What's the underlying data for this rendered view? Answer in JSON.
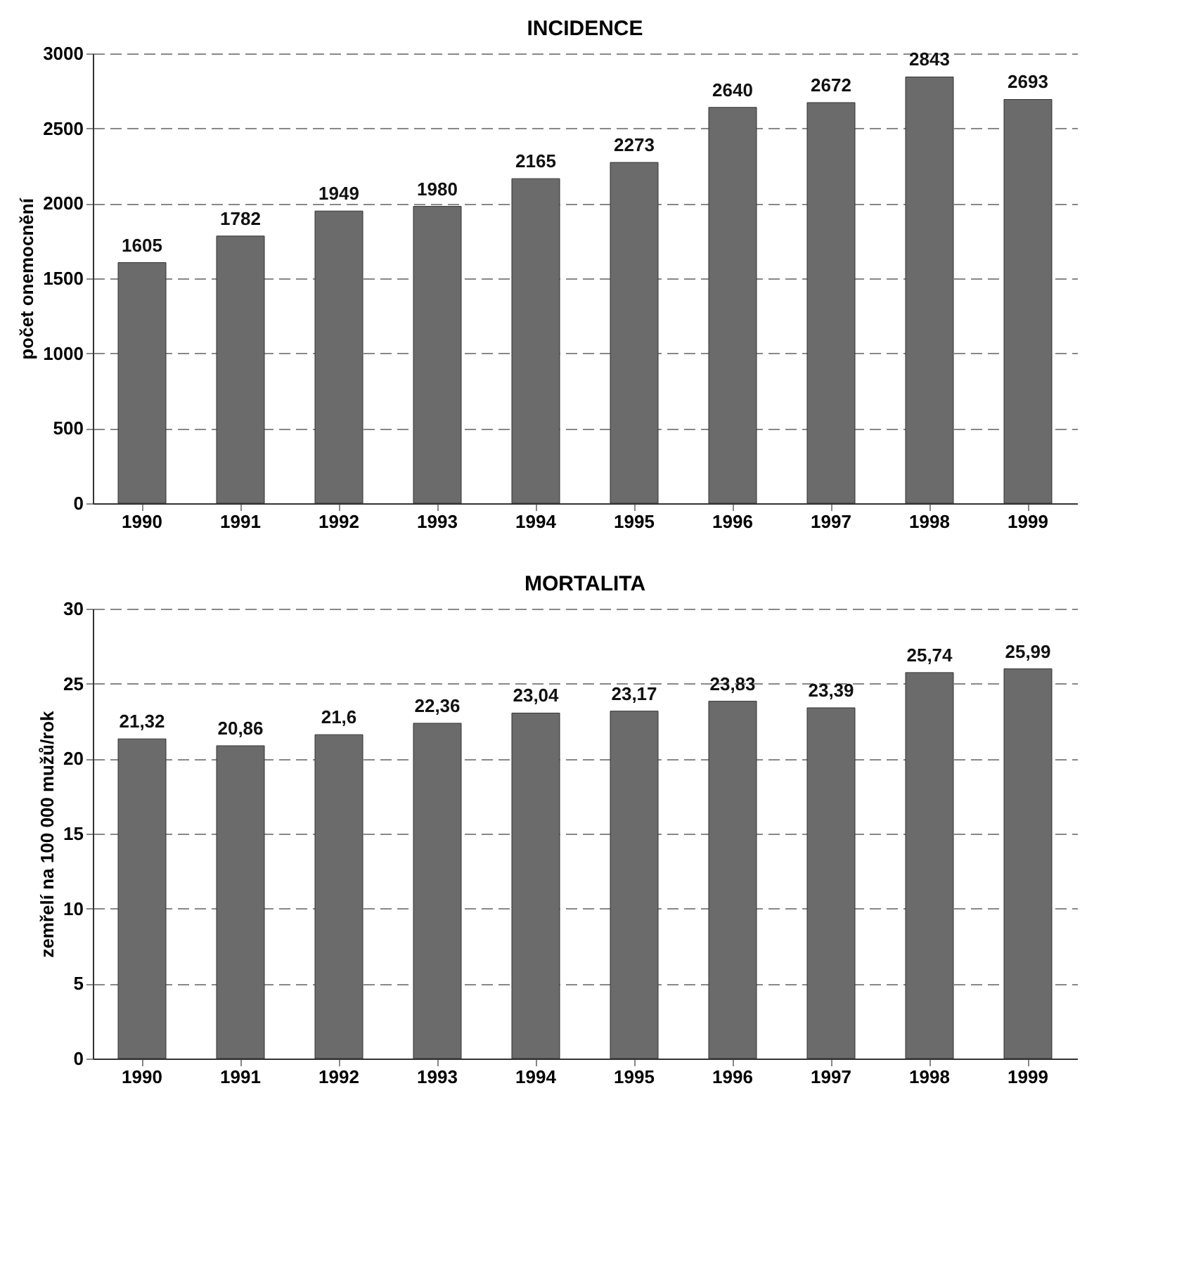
{
  "chart_data": [
    {
      "type": "bar",
      "title": "INCIDENCE",
      "ylabel": "počet onemocnění",
      "categories": [
        "1990",
        "1991",
        "1992",
        "1993",
        "1994",
        "1995",
        "1996",
        "1997",
        "1998",
        "1999"
      ],
      "values": [
        1605,
        1782,
        1949,
        1980,
        2165,
        2273,
        2640,
        2672,
        2843,
        2693
      ],
      "color": "#6b6b6b",
      "ylim": [
        0,
        3000
      ],
      "yticks": [
        0,
        500,
        1000,
        1500,
        2000,
        2500,
        3000
      ],
      "grid": "y",
      "data_labels": true
    },
    {
      "type": "bar",
      "title": "MORTALITA",
      "ylabel": "zemřelí na 100 000 mužů/rok",
      "categories": [
        "1990",
        "1991",
        "1992",
        "1993",
        "1994",
        "1995",
        "1996",
        "1997",
        "1998",
        "1999"
      ],
      "values": [
        21.32,
        20.86,
        21.6,
        22.36,
        23.04,
        23.17,
        23.83,
        23.39,
        25.74,
        25.99
      ],
      "value_labels": [
        "21,32",
        "20,86",
        "21,6",
        "22,36",
        "23,04",
        "23,17",
        "23,83",
        "23,39",
        "25,74",
        "25,99"
      ],
      "color": "#6b6b6b",
      "ylim": [
        0,
        30
      ],
      "yticks": [
        0,
        5,
        10,
        15,
        20,
        25,
        30
      ],
      "grid": "y"
    }
  ]
}
